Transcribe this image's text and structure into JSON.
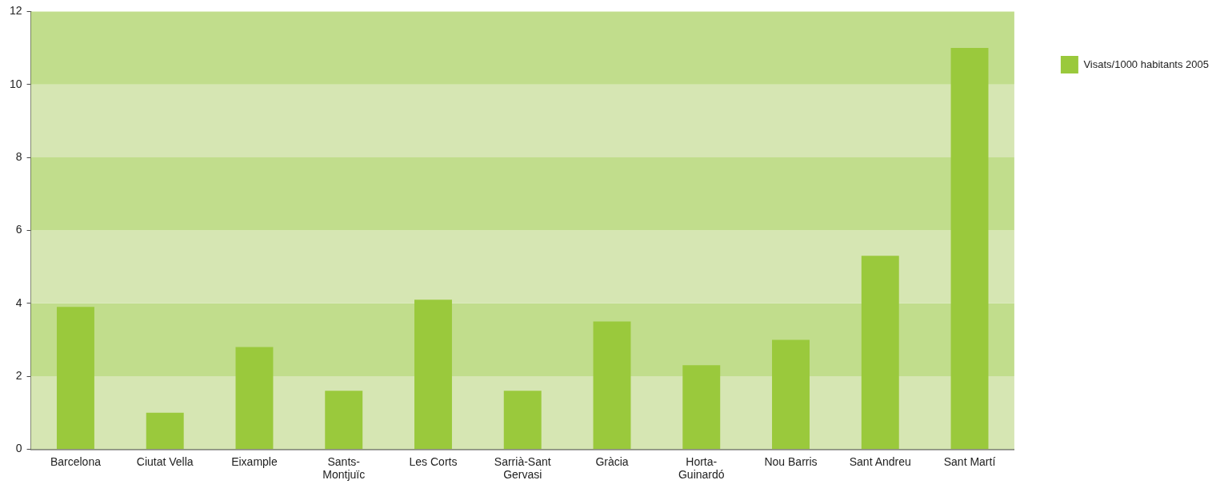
{
  "chart_data": {
    "type": "bar",
    "categories": [
      "Barcelona",
      "Ciutat Vella",
      "Eixample",
      "Sants-Montjuïc",
      "Les Corts",
      "Sarrià-Sant Gervasi",
      "Gràcia",
      "Horta-Guinardó",
      "Nou Barris",
      "Sant Andreu",
      "Sant Martí"
    ],
    "series": [
      {
        "name": "Visats/1000 habitants 2005",
        "color": "#9ac93c",
        "values": [
          3.9,
          1.0,
          2.8,
          1.6,
          4.1,
          1.6,
          3.5,
          2.3,
          3.0,
          5.3,
          11.0
        ]
      }
    ],
    "ylim": [
      0,
      12
    ],
    "yticks": [
      0,
      2,
      4,
      6,
      8,
      10,
      12
    ],
    "bands": [
      {
        "axis": "y",
        "from": 0,
        "to": 2,
        "color": "#d6e6b3"
      },
      {
        "axis": "y",
        "from": 2,
        "to": 4,
        "color": "#c1dd8c"
      },
      {
        "axis": "y",
        "from": 4,
        "to": 6,
        "color": "#d6e6b3"
      },
      {
        "axis": "y",
        "from": 6,
        "to": 8,
        "color": "#c1dd8c"
      },
      {
        "axis": "y",
        "from": 8,
        "to": 10,
        "color": "#d6e6b3"
      },
      {
        "axis": "y",
        "from": 10,
        "to": 12,
        "color": "#c1dd8c"
      }
    ],
    "grid": false,
    "legend": "top right"
  }
}
